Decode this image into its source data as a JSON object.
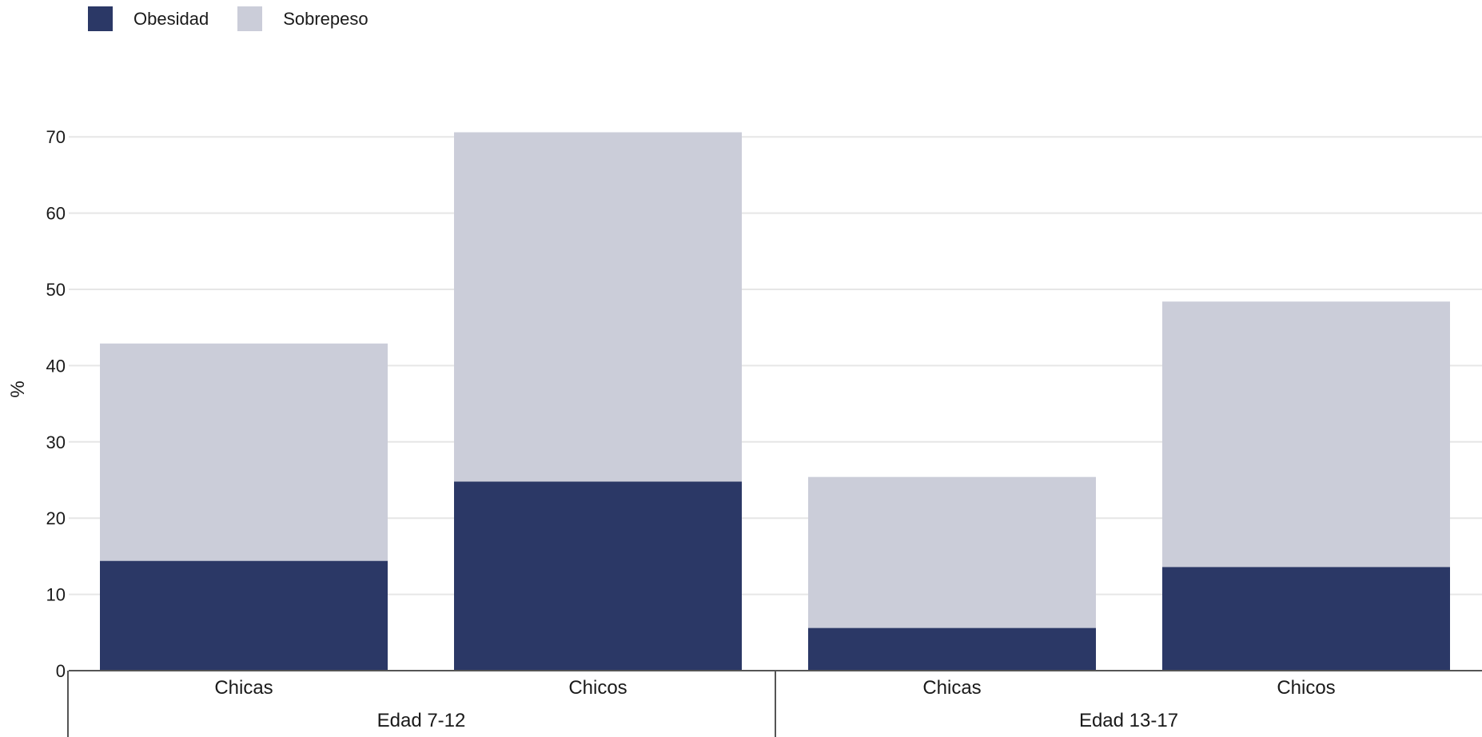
{
  "legend": [
    {
      "label": "Obesidad",
      "color": "#2b3866"
    },
    {
      "label": "Sobrepeso",
      "color": "#cbcdd9"
    }
  ],
  "chart_data": {
    "type": "bar",
    "stacked": true,
    "ylabel": "%",
    "ylim": [
      0,
      70
    ],
    "yticks": [
      0,
      10,
      20,
      30,
      40,
      50,
      60,
      70
    ],
    "grid": true,
    "legend_position": "top-left",
    "groups": [
      {
        "label": "Edad 7-12",
        "categories": [
          "Chicas",
          "Chicos"
        ]
      },
      {
        "label": "Edad 13-17",
        "categories": [
          "Chicas",
          "Chicos"
        ]
      }
    ],
    "categories": [
      "Chicas",
      "Chicos",
      "Chicas",
      "Chicos"
    ],
    "series": [
      {
        "name": "Obesidad",
        "color": "#2b3866",
        "values": [
          14.4,
          24.8,
          5.6,
          13.6
        ]
      },
      {
        "name": "Sobrepeso",
        "color": "#cbcdd9",
        "values": [
          28.5,
          45.8,
          19.8,
          34.8
        ]
      }
    ]
  }
}
